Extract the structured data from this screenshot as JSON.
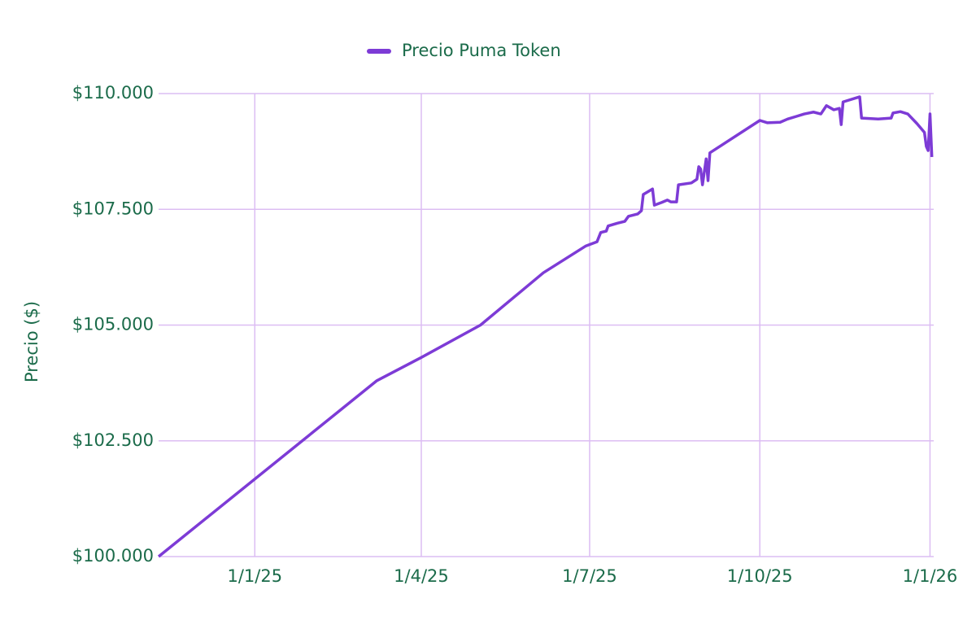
{
  "chart_data": {
    "type": "line",
    "legend_position": "top",
    "y_label": "Precio ($)",
    "grid": true,
    "x": [
      "2024-11-10",
      "2025-03-08",
      "2025-04-01",
      "2025-05-03",
      "2025-06-06",
      "2025-06-29",
      "2025-07-05",
      "2025-07-07",
      "2025-07-10",
      "2025-07-11",
      "2025-07-16",
      "2025-07-20",
      "2025-07-22",
      "2025-07-27",
      "2025-07-29",
      "2025-07-30",
      "2025-08-04",
      "2025-08-05",
      "2025-08-09",
      "2025-08-12",
      "2025-08-14",
      "2025-08-17",
      "2025-08-18",
      "2025-08-25",
      "2025-08-28",
      "2025-08-29",
      "2025-08-30",
      "2025-08-31",
      "2025-09-02",
      "2025-09-03",
      "2025-09-04",
      "2025-10-01",
      "2025-10-05",
      "2025-10-12",
      "2025-10-16",
      "2025-10-21",
      "2025-10-25",
      "2025-10-30",
      "2025-11-03",
      "2025-11-06",
      "2025-11-10",
      "2025-11-13",
      "2025-11-14",
      "2025-11-15",
      "2025-11-24",
      "2025-11-25",
      "2025-12-04",
      "2025-12-11",
      "2025-12-12",
      "2025-12-16",
      "2025-12-20",
      "2025-12-25",
      "2025-12-29",
      "2025-12-30",
      "2025-12-31",
      "2026-01-01",
      "2026-01-02"
    ],
    "series": [
      {
        "name": "Precio Puma Token",
        "color": "#7d3bd6",
        "values": [
          100000,
          103800,
          104300,
          105000,
          106130,
          106710,
          106800,
          107000,
          107030,
          107140,
          107200,
          107240,
          107350,
          107400,
          107470,
          107820,
          107940,
          107590,
          107650,
          107700,
          107660,
          107660,
          108030,
          108070,
          108150,
          108420,
          108370,
          108030,
          108590,
          108120,
          108720,
          109420,
          109370,
          109380,
          109450,
          109510,
          109560,
          109600,
          109560,
          109740,
          109650,
          109680,
          109330,
          109820,
          109930,
          109470,
          109450,
          109470,
          109580,
          109610,
          109560,
          109350,
          109160,
          108860,
          108770,
          109560,
          108630
        ]
      }
    ],
    "xlim": [
      "2024-11-10",
      "2026-01-03"
    ],
    "xticks": [
      {
        "value": "2025-01-01",
        "label": "1/1/25"
      },
      {
        "value": "2025-04-01",
        "label": "1/4/25"
      },
      {
        "value": "2025-07-01",
        "label": "1/7/25"
      },
      {
        "value": "2025-10-01",
        "label": "1/10/25"
      },
      {
        "value": "2026-01-01",
        "label": "1/1/26"
      }
    ],
    "ylim": [
      100000,
      110000
    ],
    "yticks": [
      {
        "value": 100000,
        "label": "$100.000"
      },
      {
        "value": 102500,
        "label": "$102.500"
      },
      {
        "value": 105000,
        "label": "$105.000"
      },
      {
        "value": 107500,
        "label": "$107.500"
      },
      {
        "value": 110000,
        "label": "$110.000"
      }
    ]
  }
}
